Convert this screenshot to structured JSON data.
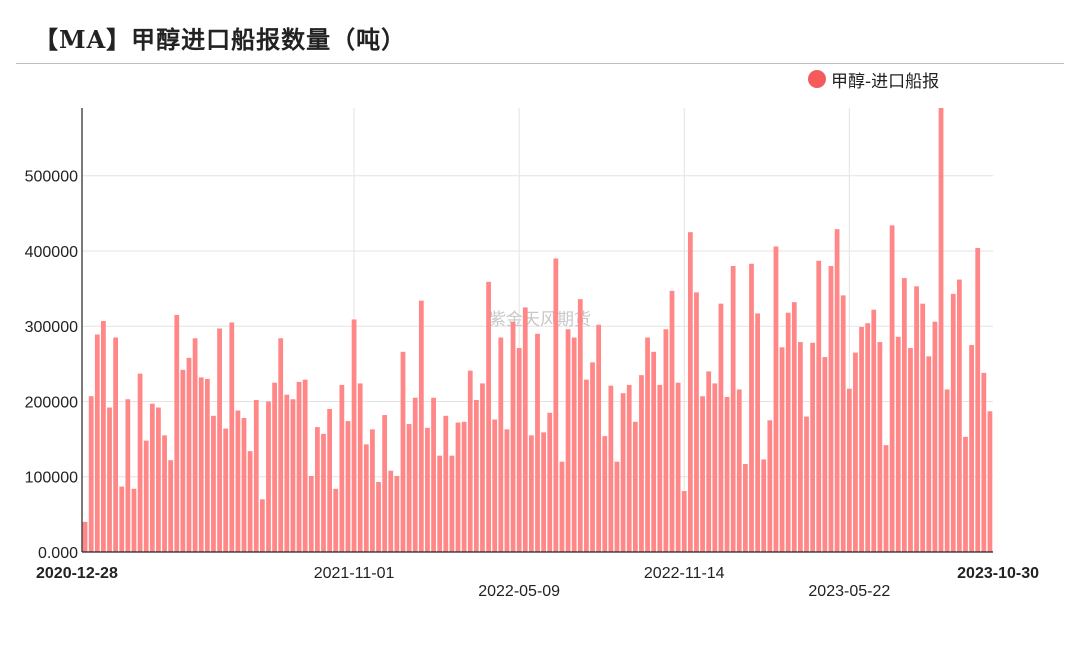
{
  "header": {
    "title": "【MA】甲醇进口船报数量（吨）"
  },
  "legend": {
    "label": "甲醇-进口船报",
    "color": "#f45b5b"
  },
  "watermark": "紫金天风期货",
  "chart_data": {
    "type": "bar",
    "title": "【MA】甲醇进口船报数量（吨）",
    "xlabel": "",
    "ylabel": "",
    "ylim": [
      0,
      590000
    ],
    "grid": true,
    "legend_position": "top-right",
    "y_ticks": [
      {
        "value": 0,
        "label": "0.000"
      },
      {
        "value": 100000,
        "label": "100000"
      },
      {
        "value": 200000,
        "label": "200000"
      },
      {
        "value": 300000,
        "label": "300000"
      },
      {
        "value": 400000,
        "label": "400000"
      },
      {
        "value": 500000,
        "label": "500000"
      }
    ],
    "x_ticks": [
      {
        "index": 0,
        "label": "2020-12-28",
        "row": 0,
        "bold": true
      },
      {
        "index": 44,
        "label": "2021-11-01",
        "row": 0,
        "bold": false
      },
      {
        "index": 71,
        "label": "2022-05-09",
        "row": 1,
        "bold": false
      },
      {
        "index": 98,
        "label": "2022-11-14",
        "row": 0,
        "bold": false
      },
      {
        "index": 125,
        "label": "2023-05-22",
        "row": 1,
        "bold": false
      },
      {
        "index": 148,
        "label": "2023-10-30",
        "row": 0,
        "bold": true
      }
    ],
    "x_start": "2020-12-28",
    "x_end": "2023-10-30",
    "x_interval": "weekly",
    "series": [
      {
        "name": "甲醇-进口船报",
        "color": "#f45b5b",
        "values": [
          40000,
          207000,
          289000,
          307000,
          192000,
          285000,
          87000,
          203000,
          84000,
          237000,
          148000,
          197000,
          192000,
          155000,
          122000,
          315000,
          242000,
          258000,
          284000,
          232000,
          230000,
          181000,
          297000,
          164000,
          305000,
          188000,
          178000,
          134000,
          202000,
          70000,
          200000,
          225000,
          284000,
          209000,
          203000,
          226000,
          229000,
          101000,
          166000,
          157000,
          190000,
          84000,
          222000,
          174000,
          309000,
          224000,
          143000,
          163000,
          93000,
          182000,
          108000,
          101000,
          266000,
          170000,
          205000,
          334000,
          165000,
          205000,
          128000,
          181000,
          128000,
          172000,
          173000,
          241000,
          202000,
          224000,
          359000,
          176000,
          285000,
          163000,
          306000,
          271000,
          325000,
          155000,
          290000,
          159000,
          185000,
          390000,
          120000,
          296000,
          285000,
          336000,
          229000,
          252000,
          302000,
          154000,
          221000,
          120000,
          211000,
          222000,
          173000,
          235000,
          285000,
          266000,
          222000,
          296000,
          347000,
          225000,
          81000,
          425000,
          345000,
          207000,
          240000,
          224000,
          330000,
          206000,
          380000,
          216000,
          117000,
          383000,
          317000,
          123000,
          175000,
          406000,
          272000,
          318000,
          332000,
          279000,
          180000,
          278000,
          387000,
          259000,
          380000,
          429000,
          341000,
          217000,
          265000,
          299000,
          304000,
          322000,
          279000,
          142000,
          434000,
          286000,
          364000,
          271000,
          353000,
          330000,
          260000,
          306000,
          595000,
          216000,
          343000,
          362000,
          153000,
          275000,
          404000,
          238000,
          187000
        ]
      }
    ]
  }
}
